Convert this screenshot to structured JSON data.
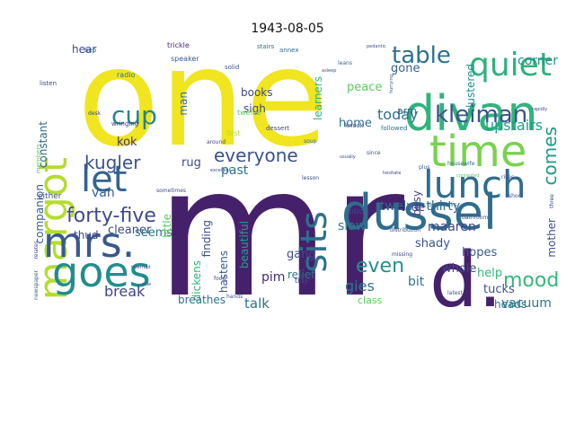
{
  "title": "1943-08-05",
  "words": [
    {
      "text": "one",
      "color": "#f0e51f",
      "rot": 0
    },
    {
      "text": "mr",
      "color": "#46216b",
      "rot": 0
    },
    {
      "text": "dussel",
      "color": "#2e6d8e",
      "rot": 0
    },
    {
      "text": "divan",
      "color": "#2fb47c",
      "rot": 0
    },
    {
      "text": "d.",
      "color": "#46216b",
      "rot": 0
    },
    {
      "text": "time",
      "color": "#7ad151",
      "rot": 0
    },
    {
      "text": "margot",
      "color": "#b4dd2c",
      "rot": 90
    },
    {
      "text": "lunch",
      "color": "#2f6c8e",
      "rot": 0
    },
    {
      "text": "sits",
      "color": "#2c718e",
      "rot": 90
    },
    {
      "text": "let",
      "color": "#32648e",
      "rot": 0
    },
    {
      "text": "goes",
      "color": "#218e8d",
      "rot": 0
    },
    {
      "text": "mrs.",
      "color": "#38598c",
      "rot": 0
    },
    {
      "text": "quiet",
      "color": "#2db27d",
      "rot": 0
    },
    {
      "text": "table",
      "color": "#2c728e",
      "rot": 0
    },
    {
      "text": "kleiman",
      "color": "#3b528b",
      "rot": 0
    },
    {
      "text": "mood",
      "color": "#35b779",
      "rot": 0
    },
    {
      "text": "comes",
      "color": "#1f998a",
      "rot": 90
    },
    {
      "text": "cup",
      "color": "#24868e",
      "rot": 0
    },
    {
      "text": "kugler",
      "color": "#3b528b",
      "rot": 0
    },
    {
      "text": "forty-five",
      "color": "#3e4989",
      "rot": 0
    },
    {
      "text": "everyone",
      "color": "#3b528b",
      "rot": 0
    },
    {
      "text": "upstairs",
      "color": "#1fa188",
      "rot": 0
    },
    {
      "text": "even",
      "color": "#21918c",
      "rot": 0
    },
    {
      "text": "gies",
      "color": "#2a788e",
      "rot": 0
    },
    {
      "text": "break",
      "color": "#404688",
      "rot": 0
    },
    {
      "text": "talk",
      "color": "#2c728e",
      "rot": 0
    },
    {
      "text": "today",
      "color": "#2c718e",
      "rot": 0
    },
    {
      "text": "corner",
      "color": "#21918c",
      "rot": 0
    },
    {
      "text": "twelve-thirty",
      "color": "#31688e",
      "rot": 0
    },
    {
      "text": "cleaner",
      "color": "#3e4a89",
      "rot": 0
    },
    {
      "text": "bit",
      "color": "#2a788e",
      "rot": 0
    },
    {
      "text": "slow",
      "color": "#2a788e",
      "rot": 0
    },
    {
      "text": "kok",
      "color": "#46337f",
      "rot": 0
    },
    {
      "text": "rug",
      "color": "#3e4a89",
      "rot": 0
    },
    {
      "text": "past",
      "color": "#2c728e",
      "rot": 0
    },
    {
      "text": "maaren",
      "color": "#404688",
      "rot": 0
    },
    {
      "text": "vacuum",
      "color": "#2c728e",
      "rot": 0
    },
    {
      "text": "whole",
      "color": "#3e4989",
      "rot": 0
    },
    {
      "text": "hopes",
      "color": "#38598c",
      "rot": 0
    },
    {
      "text": "tucks",
      "color": "#3b528b",
      "rot": 0
    },
    {
      "text": "help",
      "color": "#35b779",
      "rot": 0
    },
    {
      "text": "home",
      "color": "#2d708e",
      "rot": 0
    },
    {
      "text": "peace",
      "color": "#5ec962",
      "rot": 0
    },
    {
      "text": "gone",
      "color": "#355f8d",
      "rot": 0
    },
    {
      "text": "clustered",
      "color": "#21918c",
      "rot": 90
    },
    {
      "text": "learners",
      "color": "#2fb47c",
      "rot": 90
    },
    {
      "text": "busy",
      "color": "#404688",
      "rot": 90
    },
    {
      "text": "shady",
      "color": "#39568c",
      "rot": 0
    },
    {
      "text": "arm",
      "color": "#31688e",
      "rot": 0
    },
    {
      "text": "van",
      "color": "#355f8d",
      "rot": 0
    },
    {
      "text": "thud",
      "color": "#3e4989",
      "rot": 0
    },
    {
      "text": "constant",
      "color": "#31688e",
      "rot": 90
    },
    {
      "text": "companion",
      "color": "#365d8d",
      "rot": 90
    },
    {
      "text": "seems",
      "color": "#2c728e",
      "rot": 0
    },
    {
      "text": "dickens",
      "color": "#2fb47c",
      "rot": 90
    },
    {
      "text": "finding",
      "color": "#3e4989",
      "rot": 90
    },
    {
      "text": "beautiful",
      "color": "#1fa188",
      "rot": 90
    },
    {
      "text": "hastens",
      "color": "#39568c",
      "rot": 90
    },
    {
      "text": "gang",
      "color": "#3e4989",
      "rot": 0
    },
    {
      "text": "pim",
      "color": "#482878",
      "rot": 0
    },
    {
      "text": "relief",
      "color": "#2a788e",
      "rot": 0
    },
    {
      "text": "breathes",
      "color": "#2c728e",
      "rot": 0
    },
    {
      "text": "class",
      "color": "#5ec962",
      "rot": 0
    },
    {
      "text": "heads",
      "color": "#2a788e",
      "rot": 0
    },
    {
      "text": "mother",
      "color": "#3e4a89",
      "rot": 90
    },
    {
      "text": "books",
      "color": "#3e4989",
      "rot": 0
    },
    {
      "text": "sigh",
      "color": "#3e4989",
      "rot": 0
    },
    {
      "text": "man",
      "color": "#2c728e",
      "rot": 90
    },
    {
      "text": "hear",
      "color": "#404688",
      "rot": 0
    },
    {
      "text": "little",
      "color": "#5ec962",
      "rot": 90
    },
    {
      "text": "tidy",
      "color": "#3e4989",
      "rot": 0
    },
    {
      "text": "bbc",
      "color": "#3e4989",
      "rot": 0
    },
    {
      "text": "de",
      "color": "#433e85",
      "rot": 0
    },
    {
      "text": "either",
      "color": "#3b528b",
      "rot": 0
    },
    {
      "text": "first",
      "color": "#b4dd2c",
      "rot": 0
    },
    {
      "text": "twelve",
      "color": "#5ec962",
      "rot": 0
    },
    {
      "text": "trickle",
      "color": "#482878",
      "rot": 0
    },
    {
      "text": "speaker",
      "color": "#38598c",
      "rot": 0
    },
    {
      "text": "radio",
      "color": "#2c728e",
      "rot": 0
    },
    {
      "text": "stairs",
      "color": "#2c728e",
      "rot": 0
    },
    {
      "text": "annex",
      "color": "#31688e",
      "rot": 0
    },
    {
      "text": "solid",
      "color": "#3b528b",
      "rot": 0
    },
    {
      "text": "listen",
      "color": "#404688",
      "rot": 0
    },
    {
      "text": "wringing",
      "color": "#443983",
      "rot": 0
    },
    {
      "text": "followed",
      "color": "#2c728e",
      "rot": 0
    },
    {
      "text": "knock",
      "color": "#3e4989",
      "rot": 0
    },
    {
      "text": "dessert",
      "color": "#404688",
      "rot": 0
    },
    {
      "text": "around",
      "color": "#404688",
      "rot": 0
    },
    {
      "text": "sometimes",
      "color": "#3e4989",
      "rot": 0
    },
    {
      "text": "bathroom",
      "color": "#3b528b",
      "rot": 0
    },
    {
      "text": "housewife",
      "color": "#31688e",
      "rot": 0
    },
    {
      "text": "contented",
      "color": "#5ec962",
      "rot": 0
    },
    {
      "text": "downstairs",
      "color": "#31688e",
      "rot": 0
    },
    {
      "text": "latest",
      "color": "#3b528b",
      "rot": 0
    },
    {
      "text": "distribution",
      "color": "#3b528b",
      "rot": 0
    },
    {
      "text": "missing",
      "color": "#404688",
      "rot": 0
    },
    {
      "text": "hands",
      "color": "#3b528b",
      "rot": 0
    },
    {
      "text": "food",
      "color": "#3e4989",
      "rot": 0
    },
    {
      "text": "side",
      "color": "#3e4989",
      "rot": 0
    },
    {
      "text": "interrupt",
      "color": "#3e4989",
      "rot": 0
    },
    {
      "text": "newspaper",
      "color": "#31688e",
      "rot": 90
    },
    {
      "text": "relates",
      "color": "#3e4989",
      "rot": 90
    },
    {
      "text": "members",
      "color": "#5ec962",
      "rot": 90
    },
    {
      "text": "bep",
      "color": "#2c728e",
      "rot": 0
    },
    {
      "text": "desk",
      "color": "#3e4989",
      "rot": 0
    },
    {
      "text": "plus",
      "color": "#38598c",
      "rot": 0
    },
    {
      "text": "since",
      "color": "#3b528b",
      "rot": 0
    },
    {
      "text": "leans",
      "color": "#31688e",
      "rot": 0
    },
    {
      "text": "soup",
      "color": "#2c728e",
      "rot": 0
    },
    {
      "text": "pedantic",
      "color": "#3b528b",
      "rot": 0
    },
    {
      "text": "rapidly",
      "color": "#3e4989",
      "rot": 0
    },
    {
      "text": "three",
      "color": "#3e4989",
      "rot": 90
    },
    {
      "text": "short",
      "color": "#3b528b",
      "rot": 0
    },
    {
      "text": "usually",
      "color": "#3e4989",
      "rot": 0
    },
    {
      "text": "hesitate",
      "color": "#3e4989",
      "rot": 0
    },
    {
      "text": "excellent",
      "color": "#3e4989",
      "rot": 0
    },
    {
      "text": "lesson",
      "color": "#3e4989",
      "rot": 0
    },
    {
      "text": "asleep",
      "color": "#3b528b",
      "rot": 0
    },
    {
      "text": "hurrying",
      "color": "#3b528b",
      "rot": 90
    },
    {
      "text": "rises",
      "color": "#3e4989",
      "rot": 0
    }
  ]
}
